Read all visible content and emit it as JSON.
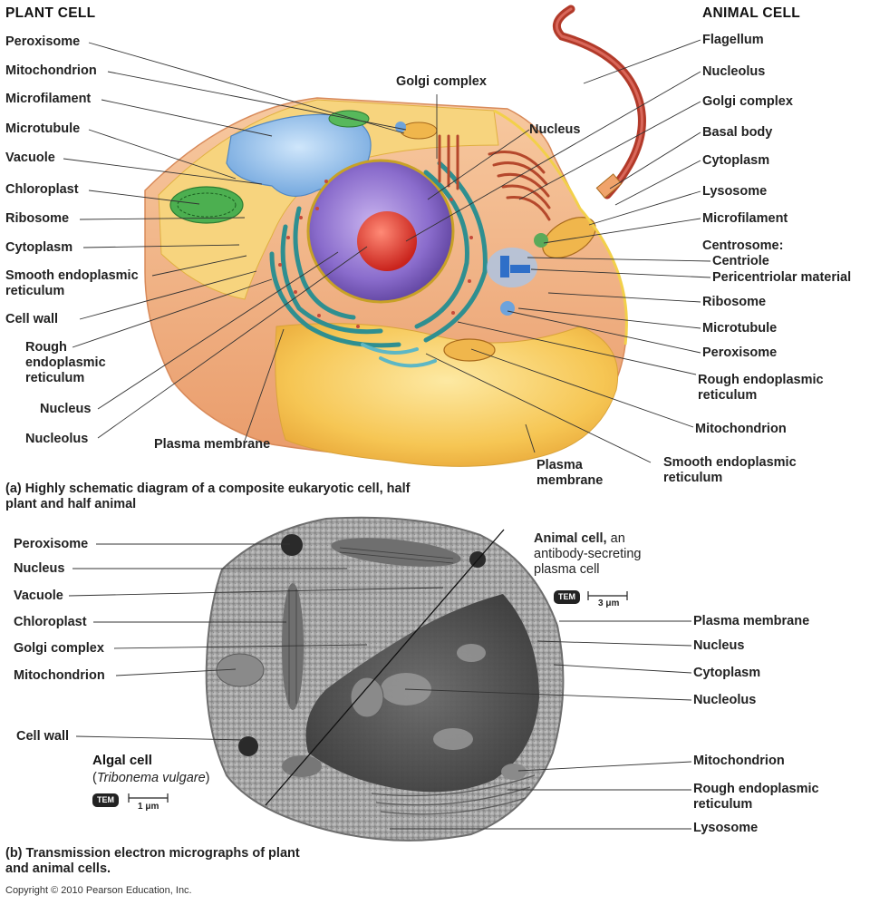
{
  "headings": {
    "plant": "PLANT CELL",
    "animal": "ANIMAL CELL"
  },
  "top_left_labels": {
    "peroxisome": "Peroxisome",
    "mitochondrion": "Mitochondrion",
    "microfilament": "Microfilament",
    "microtubule": "Microtubule",
    "vacuole": "Vacuole",
    "chloroplast": "Chloroplast",
    "ribosome": "Ribosome",
    "cytoplasm": "Cytoplasm",
    "smooth_er": "Smooth endoplasmic reticulum",
    "cell_wall": "Cell wall",
    "rough_er": "Rough endoplasmic reticulum",
    "nucleus": "Nucleus",
    "nucleolus": "Nucleolus"
  },
  "top_center_labels": {
    "golgi": "Golgi complex",
    "nucleus": "Nucleus",
    "plasma_membrane": "Plasma membrane"
  },
  "top_right_labels": {
    "flagellum": "Flagellum",
    "nucleolus": "Nucleolus",
    "golgi": "Golgi complex",
    "basal_body": "Basal body",
    "cytoplasm": "Cytoplasm",
    "lysosome": "Lysosome",
    "microfilament": "Microfilament",
    "centrosome": "Centrosome:",
    "centriole": "Centriole",
    "pericentriolar": "Pericentriolar material",
    "ribosome": "Ribosome",
    "microtubule": "Microtubule",
    "peroxisome": "Peroxisome",
    "rough_er": "Rough endoplasmic reticulum",
    "mitochondrion": "Mitochondrion",
    "smooth_er": "Smooth endoplasmic reticulum",
    "plasma_membrane": "Plasma membrane"
  },
  "caption_a": {
    "tag": "(a)",
    "text": "Highly schematic diagram of a composite eukaryotic cell, half plant and half animal"
  },
  "bottom_left_labels": {
    "peroxisome": "Peroxisome",
    "nucleus": "Nucleus",
    "vacuole": "Vacuole",
    "chloroplast": "Chloroplast",
    "golgi": "Golgi complex",
    "mitochondrion": "Mitochondrion",
    "cell_wall": "Cell wall"
  },
  "algal": {
    "title": "Algal cell",
    "species": "Tribonema vulgare",
    "tem": "TEM",
    "scale": "1 μm"
  },
  "animal_micro": {
    "title": "Animal cell,",
    "desc1": "an",
    "desc2": "antibody-secreting",
    "desc3": "plasma cell",
    "tem": "TEM",
    "scale": "3 μm"
  },
  "bottom_right_labels": {
    "plasma_membrane": "Plasma membrane",
    "nucleus": "Nucleus",
    "cytoplasm": "Cytoplasm",
    "nucleolus": "Nucleolus",
    "mitochondrion": "Mitochondrion",
    "rough_er": "Rough endoplasmic reticulum",
    "lysosome": "Lysosome"
  },
  "caption_b": {
    "tag": "(b)",
    "text": "Transmission electron micrographs of plant and animal cells."
  },
  "copyright": "Copyright © 2010 Pearson Education, Inc.",
  "colors": {
    "cytoplasm_yellow": "#f6c654",
    "wall_peach": "#f2b487",
    "nucleus_purple": "#7b5cb6",
    "nucleolus_red": "#e0403a",
    "er_teal": "#2f8f90",
    "vacuole_blue": "#7fb3e6",
    "flagellum": "#b23a2a",
    "micrograph_gray": "#9a9a9a"
  }
}
